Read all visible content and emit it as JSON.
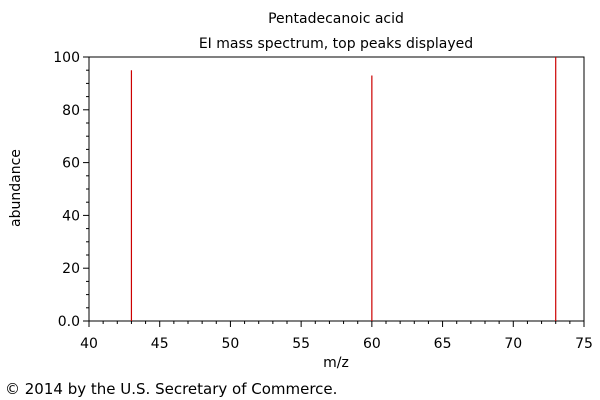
{
  "chart_data": {
    "type": "bar",
    "title": "Pentadecanoic acid",
    "subtitle": "EI mass spectrum, top peaks displayed",
    "xlabel": "m/z",
    "ylabel": "abundance",
    "xlim": [
      40,
      75
    ],
    "ylim": [
      0,
      100
    ],
    "x_ticks": [
      "40",
      "45",
      "50",
      "55",
      "60",
      "65",
      "70",
      "75"
    ],
    "y_ticks": [
      "0.0",
      "20",
      "40",
      "60",
      "80",
      "100"
    ],
    "x": [
      43,
      60,
      73
    ],
    "values": [
      95,
      93,
      100
    ],
    "grid": false,
    "peak_color": "#cc0000"
  },
  "footer": {
    "copyright": "© 2014 by the U.S. Secretary of Commerce."
  }
}
